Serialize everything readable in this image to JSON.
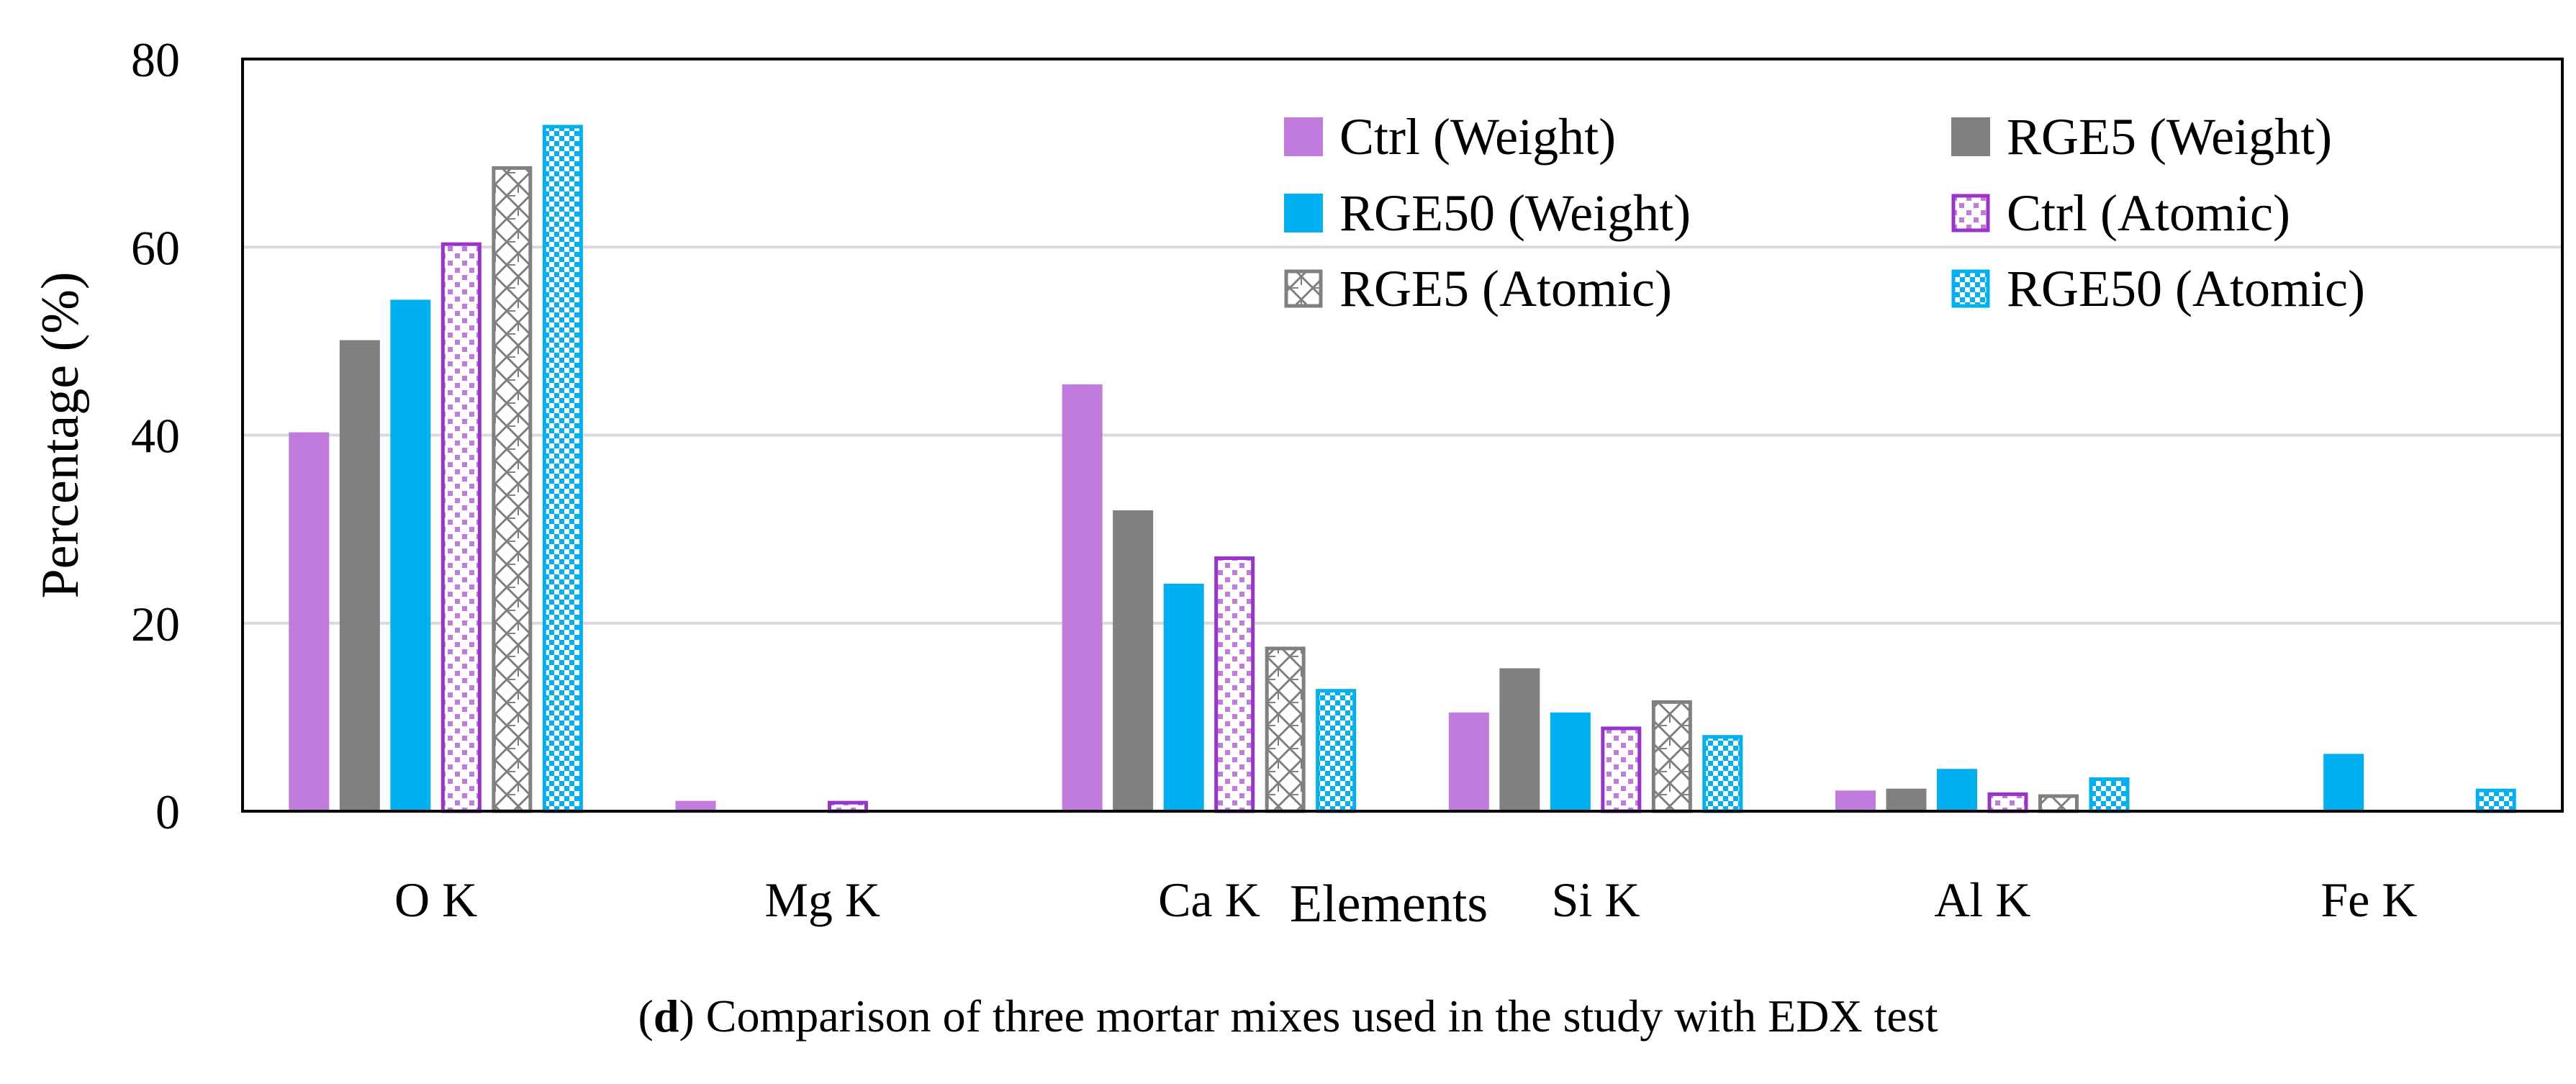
{
  "chart_data": {
    "type": "bar",
    "categories": [
      "O K",
      "Mg K",
      "Ca K",
      "Si K",
      "Al K",
      "Fe K"
    ],
    "series": [
      {
        "name": "Ctrl (Weight)",
        "values": [
          40.3,
          1.1,
          45.4,
          10.5,
          2.2,
          0
        ],
        "color": "#c17bdc",
        "pattern": "solid"
      },
      {
        "name": "RGE5 (Weight)",
        "values": [
          50.1,
          0,
          32.0,
          15.2,
          2.4,
          0
        ],
        "color": "#808080",
        "pattern": "solid"
      },
      {
        "name": "RGE50 (Weight)",
        "values": [
          54.4,
          0,
          24.2,
          10.5,
          4.5,
          6.1
        ],
        "color": "#00b0f0",
        "pattern": "solid"
      },
      {
        "name": "Ctrl (Atomic)",
        "values": [
          60.5,
          1.1,
          27.1,
          9.0,
          2.0,
          0
        ],
        "color": "#9933cc",
        "pattern": "squares"
      },
      {
        "name": "RGE5 (Atomic)",
        "values": [
          68.6,
          0,
          17.5,
          11.8,
          1.8,
          0
        ],
        "color": "#808080",
        "pattern": "lattice"
      },
      {
        "name": "RGE50 (Atomic)",
        "values": [
          73.0,
          0,
          13.0,
          8.1,
          3.6,
          2.4
        ],
        "color": "#00b0f0",
        "pattern": "checker"
      }
    ],
    "title": "",
    "xlabel": "Elements",
    "ylabel": "Percentage (%)",
    "ylim": [
      0,
      80
    ],
    "yticks": [
      0,
      20,
      40,
      60,
      80
    ],
    "grid": true,
    "legend_position": "top-right"
  },
  "caption": {
    "letter": "d",
    "text": " Comparison of three mortar mixes used in the study with EDX test"
  }
}
